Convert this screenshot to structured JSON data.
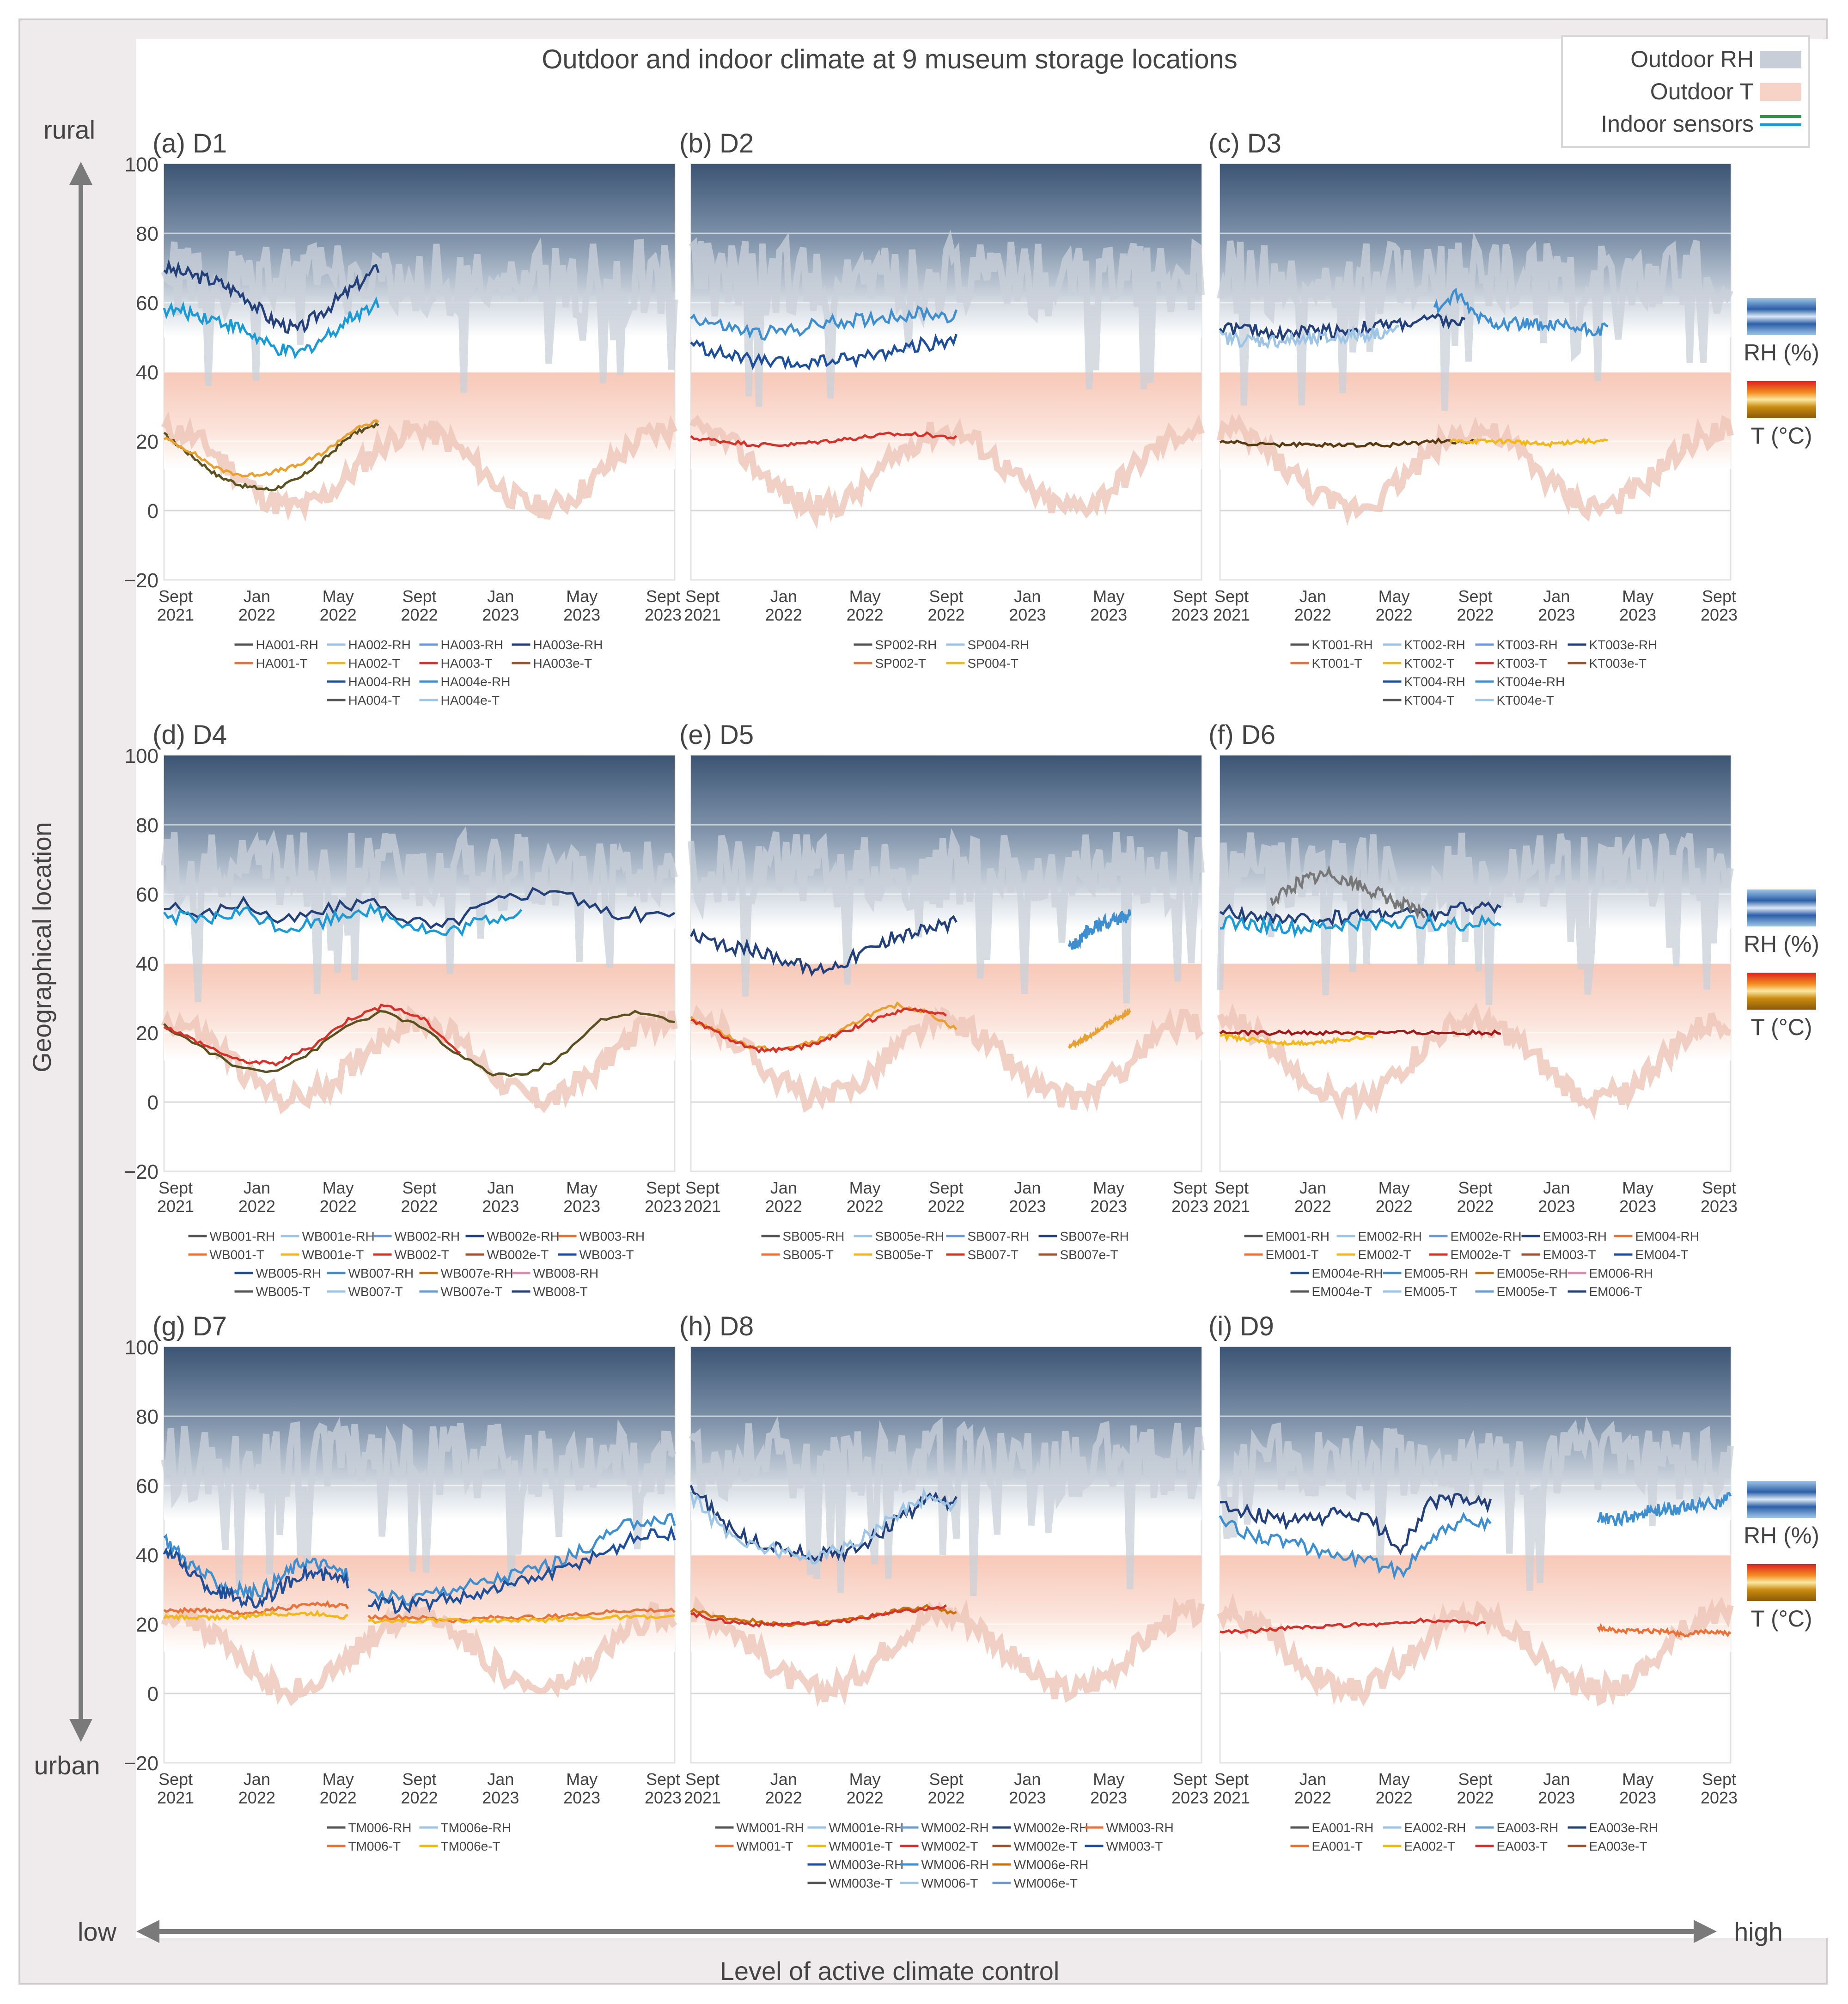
{
  "chart_data": {
    "type": "line",
    "title": "Outdoor and indoor climate at 9 museum storage locations",
    "legend": [
      {
        "label": "Outdoor RH",
        "color": "#c7ced8"
      },
      {
        "label": "Outdoor T",
        "color": "#f6d3c6"
      },
      {
        "label": "Indoor sensors",
        "colors": [
          "#2a9a3e",
          "#1b9ad6"
        ]
      }
    ],
    "y_axis_label": "Geographical location",
    "y_axis_top": "rural",
    "y_axis_bottom": "urban",
    "x_axis_label": "Level of active climate control",
    "x_axis_left": "low",
    "x_axis_right": "high",
    "side_labels": {
      "rh": "RH (%)",
      "t": "T (°C)"
    },
    "ylim": [
      -20,
      100
    ],
    "yticks": [
      "100",
      "80",
      "60",
      "40",
      "20",
      "0",
      "−20"
    ],
    "xticks": [
      [
        "Sept",
        "2021"
      ],
      [
        "Jan",
        "2022"
      ],
      [
        "May",
        "2022"
      ],
      [
        "Sept",
        "2022"
      ],
      [
        "Jan",
        "2023"
      ],
      [
        "May",
        "2023"
      ],
      [
        "Sept",
        "2023"
      ]
    ],
    "panels": [
      {
        "id": "a",
        "title": "(a) D1",
        "rh": [
          {
            "start": 0,
            "end": 0.42,
            "values": [
              70,
              68,
              66,
              62,
              55,
              52,
              58,
              64,
              70
            ],
            "color": "#23407a"
          },
          {
            "start": 0,
            "end": 0.42,
            "values": [
              58,
              57,
              55,
              52,
              47,
              45,
              50,
              56,
              60
            ],
            "color": "#1b9ad6"
          }
        ],
        "t": [
          {
            "start": 0,
            "end": 0.42,
            "values": [
              22,
              16,
              10,
              7,
              6,
              9,
              15,
              22,
              25
            ],
            "color": "#5a5020"
          },
          {
            "start": 0,
            "end": 0.42,
            "values": [
              21,
              17,
              12,
              10,
              11,
              13,
              17,
              23,
              26
            ],
            "color": "#e8a030"
          }
        ],
        "legend": [
          [
            "HA001-RH",
            "HA002-RH",
            "HA003-RH",
            "HA003e-RH"
          ],
          [
            "HA001-T",
            "HA002-T",
            "HA003-T",
            "HA003e-T"
          ],
          [
            "HA004-RH",
            "HA004e-RH"
          ],
          [
            "HA004-T",
            "HA004e-T"
          ]
        ]
      },
      {
        "id": "b",
        "title": "(b) D2",
        "rh": [
          {
            "start": 0,
            "end": 0.52,
            "values": [
              56,
              53,
              51,
              52,
              54,
              55,
              56,
              57,
              56
            ],
            "color": "#3f8fd0"
          },
          {
            "start": 0,
            "end": 0.52,
            "values": [
              48,
              45,
              43,
              42,
              43,
              44,
              46,
              48,
              49
            ],
            "color": "#1f4f9a"
          }
        ],
        "t": [
          {
            "start": 0,
            "end": 0.52,
            "values": [
              21,
              20,
              19,
              19,
              20,
              21,
              22,
              22,
              21
            ],
            "color": "#d4322b"
          }
        ],
        "legend": [
          [
            "SP002-RH",
            "SP004-RH"
          ],
          [
            "SP002-T",
            "SP004-T"
          ]
        ]
      },
      {
        "id": "c",
        "title": "(c) D3",
        "rh": [
          {
            "start": 0,
            "end": 0.48,
            "values": [
              53,
              52,
              51,
              52,
              52,
              53,
              54,
              55,
              54
            ],
            "color": "#23407a"
          },
          {
            "start": 0.42,
            "end": 0.76,
            "values": [
              58,
              62,
              56,
              54,
              54,
              53,
              53,
              52,
              52
            ],
            "color": "#3f8fd0"
          },
          {
            "start": 0,
            "end": 0.35,
            "values": [
              50,
              49,
              49,
              49,
              50,
              51,
              52
            ],
            "color": "#9ec4e6"
          }
        ],
        "t": [
          {
            "start": 0,
            "end": 0.5,
            "values": [
              20,
              19,
              19,
              19,
              19,
              20,
              20
            ],
            "color": "#5a3a10"
          },
          {
            "start": 0.45,
            "end": 0.76,
            "values": [
              20,
              20,
              20,
              19,
              20,
              20
            ],
            "color": "#f2b818"
          }
        ],
        "legend": [
          [
            "KT001-RH",
            "KT002-RH",
            "KT003-RH",
            "KT003e-RH"
          ],
          [
            "KT001-T",
            "KT002-T",
            "KT003-T",
            "KT003e-T"
          ],
          [
            "KT004-RH",
            "KT004e-RH"
          ],
          [
            "KT004-T",
            "KT004e-T"
          ]
        ]
      },
      {
        "id": "d",
        "title": "(d) D4",
        "rh": [
          {
            "start": 0,
            "end": 1,
            "values": [
              56,
              54,
              58,
              52,
              55,
              58,
              54,
              50,
              56,
              60,
              62,
              55,
              54,
              54
            ],
            "color": "#23407a"
          },
          {
            "start": 0,
            "end": 0.7,
            "values": [
              54,
              52,
              55,
              50,
              52,
              56,
              52,
              48,
              52,
              55
            ],
            "color": "#1b9ad6"
          }
        ],
        "t": [
          {
            "start": 0,
            "end": 1,
            "values": [
              22,
              16,
              10,
              9,
              14,
              22,
              26,
              22,
              14,
              8,
              8,
              14,
              24,
              26,
              23
            ],
            "color": "#5a5020"
          },
          {
            "start": 0,
            "end": 0.58,
            "values": [
              22,
              17,
              12,
              11,
              16,
              24,
              28,
              24,
              14
            ],
            "color": "#d4322b"
          }
        ],
        "legend": [
          [
            "WB001-RH",
            "WB001e-RH",
            "WB002-RH",
            "WB002e-RH",
            "WB003-RH"
          ],
          [
            "WB001-T",
            "WB001e-T",
            "WB002-T",
            "WB002e-T",
            "WB003-T"
          ],
          [
            "WB005-RH",
            "WB007-RH",
            "WB007e-RH",
            "WB008-RH"
          ],
          [
            "WB005-T",
            "WB007-T",
            "WB007e-T",
            "WB008-T"
          ]
        ]
      },
      {
        "id": "e",
        "title": "(e) D5",
        "rh": [
          {
            "start": 0,
            "end": 0.52,
            "values": [
              48,
              45,
              44,
              42,
              38,
              40,
              44,
              48,
              50,
              52
            ],
            "color": "#23407a"
          },
          {
            "start": 0.74,
            "end": 0.86,
            "values": [
              44,
              50,
              52,
              54
            ],
            "color": "#3f8fd0"
          }
        ],
        "t": [
          {
            "start": 0,
            "end": 0.52,
            "values": [
              24,
              20,
              16,
              15,
              17,
              20,
              25,
              28,
              26,
              21
            ],
            "color": "#e8a030"
          },
          {
            "start": 0,
            "end": 0.5,
            "values": [
              24,
              19,
              15,
              15,
              17,
              21,
              25,
              27,
              25
            ],
            "color": "#d4322b"
          },
          {
            "start": 0.74,
            "end": 0.86,
            "values": [
              16,
              19,
              23,
              26
            ],
            "color": "#e8a030"
          }
        ],
        "legend": [
          [
            "SB005-RH",
            "SB005e-RH",
            "SB007-RH",
            "SB007e-RH"
          ],
          [
            "SB005-T",
            "SB005e-T",
            "SB007-T",
            "SB007e-T"
          ]
        ]
      },
      {
        "id": "f",
        "title": "(f) D6",
        "rh": [
          {
            "start": 0,
            "end": 0.55,
            "values": [
              55,
              54,
              52,
              53,
              54,
              55,
              54,
              56,
              57
            ],
            "color": "#23407a"
          },
          {
            "start": 0.1,
            "end": 0.4,
            "values": [
              58,
              64,
              66,
              62,
              58,
              54
            ],
            "color": "#777"
          },
          {
            "start": 0,
            "end": 0.55,
            "values": [
              52,
              51,
              50,
              51,
              52,
              52,
              51,
              52
            ],
            "color": "#1b9ad6"
          }
        ],
        "t": [
          {
            "start": 0,
            "end": 0.55,
            "values": [
              20,
              20,
              20,
              20,
              20,
              20,
              20,
              20
            ],
            "color": "#a01818"
          },
          {
            "start": 0,
            "end": 0.3,
            "values": [
              19,
              18,
              17,
              17,
              18,
              19
            ],
            "color": "#f2b818"
          }
        ],
        "legend": [
          [
            "EM001-RH",
            "EM002-RH",
            "EM002e-RH",
            "EM003-RH",
            "EM004-RH"
          ],
          [
            "EM001-T",
            "EM002-T",
            "EM002e-T",
            "EM003-T",
            "EM004-T"
          ],
          [
            "EM004e-RH",
            "EM005-RH",
            "EM005e-RH",
            "EM006-RH"
          ],
          [
            "EM004e-T",
            "EM005-T",
            "EM005e-T",
            "EM006-T"
          ]
        ]
      },
      {
        "id": "g",
        "title": "(g) D7",
        "rh": [
          {
            "start": 0,
            "end": 0.36,
            "values": [
              45,
              38,
              33,
              30,
              29,
              33,
              38,
              37,
              34
            ],
            "color": "#3f8fd0"
          },
          {
            "start": 0.4,
            "end": 1,
            "values": [
              29,
              27,
              30,
              32,
              35,
              38,
              44,
              50,
              50
            ],
            "color": "#3f8fd0"
          },
          {
            "start": 0,
            "end": 0.36,
            "values": [
              42,
              36,
              30,
              28,
              26,
              30,
              35,
              34,
              32
            ],
            "color": "#1f4f9a"
          },
          {
            "start": 0.4,
            "end": 1,
            "values": [
              26,
              25,
              27,
              29,
              32,
              35,
              40,
              45,
              46
            ],
            "color": "#1f4f9a"
          }
        ],
        "t": [
          {
            "start": 0,
            "end": 0.36,
            "values": [
              24,
              24,
              24,
              23,
              24,
              25,
              26,
              25
            ],
            "color": "#e8733a"
          },
          {
            "start": 0.4,
            "end": 1,
            "values": [
              22,
              22,
              21,
              22,
              22,
              23,
              24,
              24
            ],
            "color": "#e8733a"
          },
          {
            "start": 0,
            "end": 0.36,
            "values": [
              22,
              22,
              22,
              22,
              23,
              23,
              23,
              22
            ],
            "color": "#f2b818"
          },
          {
            "start": 0.4,
            "end": 1,
            "values": [
              21,
              21,
              21,
              21,
              21,
              22,
              22,
              22
            ],
            "color": "#f2b818"
          }
        ],
        "legend": [
          [
            "TM006-RH",
            "TM006e-RH"
          ],
          [
            "TM006-T",
            "TM006e-T"
          ]
        ]
      },
      {
        "id": "h",
        "title": "(h) D8",
        "rh": [
          {
            "start": 0,
            "end": 0.52,
            "values": [
              60,
              50,
              44,
              42,
              40,
              40,
              44,
              50,
              56,
              55
            ],
            "color": "#23407a"
          },
          {
            "start": 0,
            "end": 0.52,
            "values": [
              57,
              48,
              43,
              41,
              39,
              41,
              46,
              52,
              57,
              54
            ],
            "color": "#9ec4e6"
          }
        ],
        "t": [
          {
            "start": 0,
            "end": 0.52,
            "values": [
              24,
              22,
              21,
              20,
              20,
              21,
              22,
              24,
              25,
              23
            ],
            "color": "#c9700a"
          },
          {
            "start": 0,
            "end": 0.5,
            "values": [
              23,
              21,
              20,
              20,
              20,
              21,
              23,
              24,
              25
            ],
            "color": "#d4322b"
          }
        ],
        "legend": [
          [
            "WM001-RH",
            "WM001e-RH",
            "WM002-RH",
            "WM002e-RH",
            "WM003-RH"
          ],
          [
            "WM001-T",
            "WM001e-T",
            "WM002-T",
            "WM002e-T",
            "WM003-T"
          ],
          [
            "WM003e-RH",
            "WM006-RH",
            "WM006e-RH"
          ],
          [
            "WM003e-T",
            "WM006-T",
            "WM006e-T"
          ]
        ]
      },
      {
        "id": "i",
        "title": "(i) D9",
        "rh": [
          {
            "start": 0,
            "end": 0.53,
            "values": [
              55,
              52,
              50,
              50,
              52,
              50,
              42,
              55,
              56,
              55
            ],
            "color": "#23407a"
          },
          {
            "start": 0,
            "end": 0.53,
            "values": [
              50,
              46,
              44,
              42,
              40,
              38,
              35,
              45,
              50,
              48
            ],
            "color": "#3f8fd0"
          },
          {
            "start": 0.74,
            "end": 1,
            "values": [
              51,
              50,
              52,
              53,
              54,
              55,
              56
            ],
            "color": "#3f8fd0"
          }
        ],
        "t": [
          {
            "start": 0,
            "end": 0.52,
            "values": [
              18,
              18,
              19,
              19,
              20,
              20,
              21,
              21,
              20
            ],
            "color": "#d4322b"
          },
          {
            "start": 0.74,
            "end": 1,
            "values": [
              19,
              18,
              18,
              18,
              17,
              18,
              17
            ],
            "color": "#e8733a"
          }
        ],
        "legend": [
          [
            "EA001-RH",
            "EA002-RH",
            "EA003-RH",
            "EA003e-RH"
          ],
          [
            "EA001-T",
            "EA002-T",
            "EA003-T",
            "EA003e-T"
          ]
        ]
      }
    ]
  }
}
